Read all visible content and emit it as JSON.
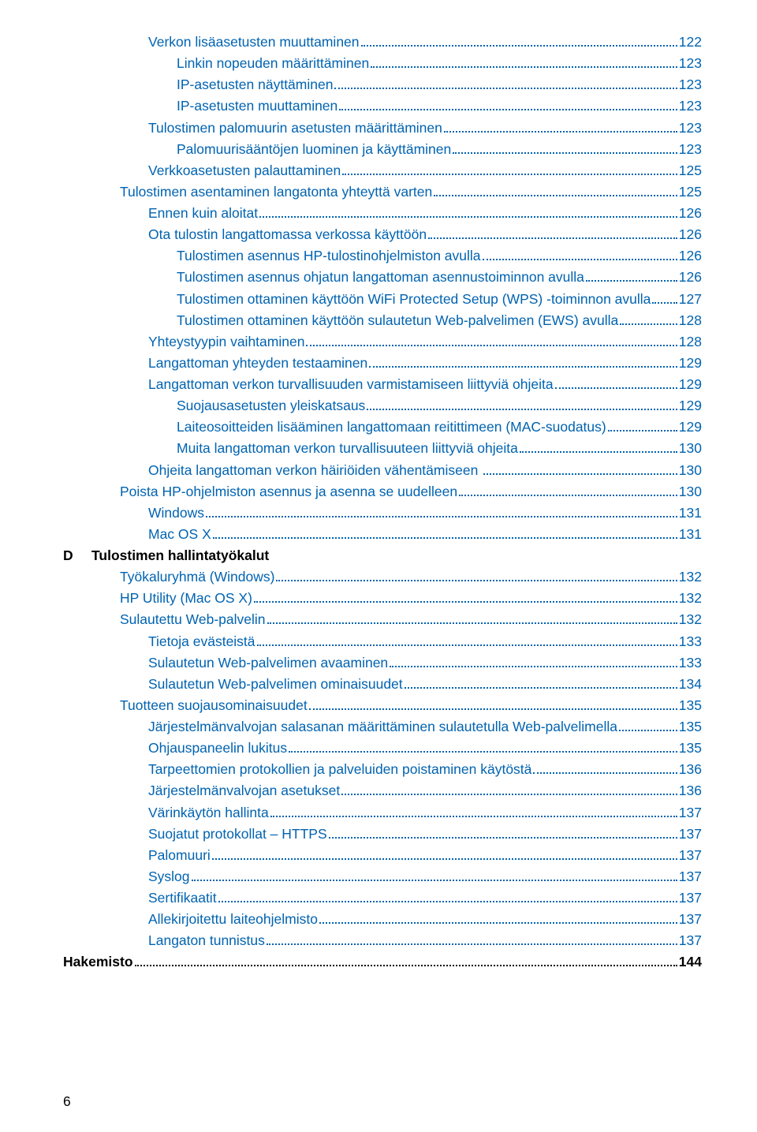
{
  "colors": {
    "link": "#0063b1",
    "text": "#000000",
    "background": "#ffffff"
  },
  "typography": {
    "font_family": "Arial, Helvetica, sans-serif",
    "font_size_pt": 13,
    "line_height": 1.55
  },
  "footer_page_number": "6",
  "toc": [
    {
      "indent": 3,
      "label": "Verkon lisäasetusten muuttaminen",
      "page": "122",
      "section": false
    },
    {
      "indent": 4,
      "label": "Linkin nopeuden määrittäminen",
      "page": "123",
      "section": false
    },
    {
      "indent": 4,
      "label": "IP-asetusten näyttäminen",
      "page": "123",
      "section": false
    },
    {
      "indent": 4,
      "label": "IP-asetusten muuttaminen",
      "page": "123",
      "section": false
    },
    {
      "indent": 3,
      "label": "Tulostimen palomuurin asetusten määrittäminen",
      "page": "123",
      "section": false
    },
    {
      "indent": 4,
      "label": "Palomuurisääntöjen luominen ja käyttäminen",
      "page": "123",
      "section": false
    },
    {
      "indent": 3,
      "label": "Verkkoasetusten palauttaminen",
      "page": "125",
      "section": false
    },
    {
      "indent": 2,
      "label": "Tulostimen asentaminen langatonta yhteyttä varten",
      "page": "125",
      "section": false
    },
    {
      "indent": 3,
      "label": "Ennen kuin aloitat",
      "page": "126",
      "section": false
    },
    {
      "indent": 3,
      "label": "Ota tulostin langattomassa verkossa käyttöön",
      "page": "126",
      "section": false
    },
    {
      "indent": 4,
      "label": "Tulostimen asennus HP-tulostinohjelmiston avulla",
      "page": "126",
      "section": false
    },
    {
      "indent": 4,
      "label": "Tulostimen asennus ohjatun langattoman asennustoiminnon avulla",
      "page": "126",
      "section": false
    },
    {
      "indent": 4,
      "label": "Tulostimen ottaminen käyttöön WiFi Protected Setup (WPS) -toiminnon avulla",
      "page": "127",
      "section": false
    },
    {
      "indent": 4,
      "label": "Tulostimen ottaminen käyttöön sulautetun Web-palvelimen (EWS) avulla",
      "page": "128",
      "section": false
    },
    {
      "indent": 3,
      "label": "Yhteystyypin vaihtaminen",
      "page": "128",
      "section": false
    },
    {
      "indent": 3,
      "label": "Langattoman yhteyden testaaminen",
      "page": "129",
      "section": false
    },
    {
      "indent": 3,
      "label": "Langattoman verkon turvallisuuden varmistamiseen liittyviä ohjeita",
      "page": "129",
      "section": false
    },
    {
      "indent": 4,
      "label": "Suojausasetusten yleiskatsaus",
      "page": "129",
      "section": false
    },
    {
      "indent": 4,
      "label": "Laiteosoitteiden lisääminen langattomaan reitittimeen (MAC-suodatus)",
      "page": "129",
      "section": false
    },
    {
      "indent": 4,
      "label": "Muita langattoman verkon turvallisuuteen liittyviä ohjeita",
      "page": "130",
      "section": false
    },
    {
      "indent": 3,
      "label": "Ohjeita langattoman verkon häiriöiden vähentämiseen ",
      "page": "130",
      "section": false
    },
    {
      "indent": 2,
      "label": "Poista HP-ohjelmiston asennus ja asenna se uudelleen",
      "page": "130",
      "section": false
    },
    {
      "indent": 3,
      "label": "Windows",
      "page": "131",
      "section": false
    },
    {
      "indent": 3,
      "label": "Mac OS X",
      "page": "131",
      "section": false
    },
    {
      "indent": 0,
      "marker": "D",
      "label": "Tulostimen hallintatyökalut",
      "section": true
    },
    {
      "indent": 2,
      "label": "Työkaluryhmä (Windows)",
      "page": "132",
      "section": false
    },
    {
      "indent": 2,
      "label": "HP Utility (Mac OS X)",
      "page": "132",
      "section": false
    },
    {
      "indent": 2,
      "label": "Sulautettu Web-palvelin",
      "page": "132",
      "section": false
    },
    {
      "indent": 3,
      "label": "Tietoja evästeistä",
      "page": "133",
      "section": false
    },
    {
      "indent": 3,
      "label": "Sulautetun Web-palvelimen avaaminen",
      "page": "133",
      "section": false
    },
    {
      "indent": 3,
      "label": "Sulautetun Web-palvelimen ominaisuudet",
      "page": "134",
      "section": false
    },
    {
      "indent": 2,
      "label": "Tuotteen suojausominaisuudet",
      "page": "135",
      "section": false
    },
    {
      "indent": 3,
      "label": "Järjestelmänvalvojan salasanan määrittäminen sulautetulla Web-palvelimella",
      "page": "135",
      "section": false
    },
    {
      "indent": 3,
      "label": "Ohjauspaneelin lukitus",
      "page": "135",
      "section": false
    },
    {
      "indent": 3,
      "label": "Tarpeettomien protokollien ja palveluiden poistaminen käytöstä",
      "page": "136",
      "section": false
    },
    {
      "indent": 3,
      "label": "Järjestelmänvalvojan asetukset",
      "page": "136",
      "section": false
    },
    {
      "indent": 3,
      "label": "Värinkäytön hallinta",
      "page": "137",
      "section": false
    },
    {
      "indent": 3,
      "label": "Suojatut protokollat – HTTPS",
      "page": "137",
      "section": false
    },
    {
      "indent": 3,
      "label": "Palomuuri",
      "page": "137",
      "section": false
    },
    {
      "indent": 3,
      "label": "Syslog",
      "page": "137",
      "section": false
    },
    {
      "indent": 3,
      "label": "Sertifikaatit",
      "page": "137",
      "section": false
    },
    {
      "indent": 3,
      "label": "Allekirjoitettu laiteohjelmisto",
      "page": "137",
      "section": false
    },
    {
      "indent": 3,
      "label": "Langaton tunnistus",
      "page": "137",
      "section": false
    },
    {
      "indent": 0,
      "label": "Hakemisto",
      "page": "144",
      "section": false,
      "bold_black": true
    }
  ]
}
